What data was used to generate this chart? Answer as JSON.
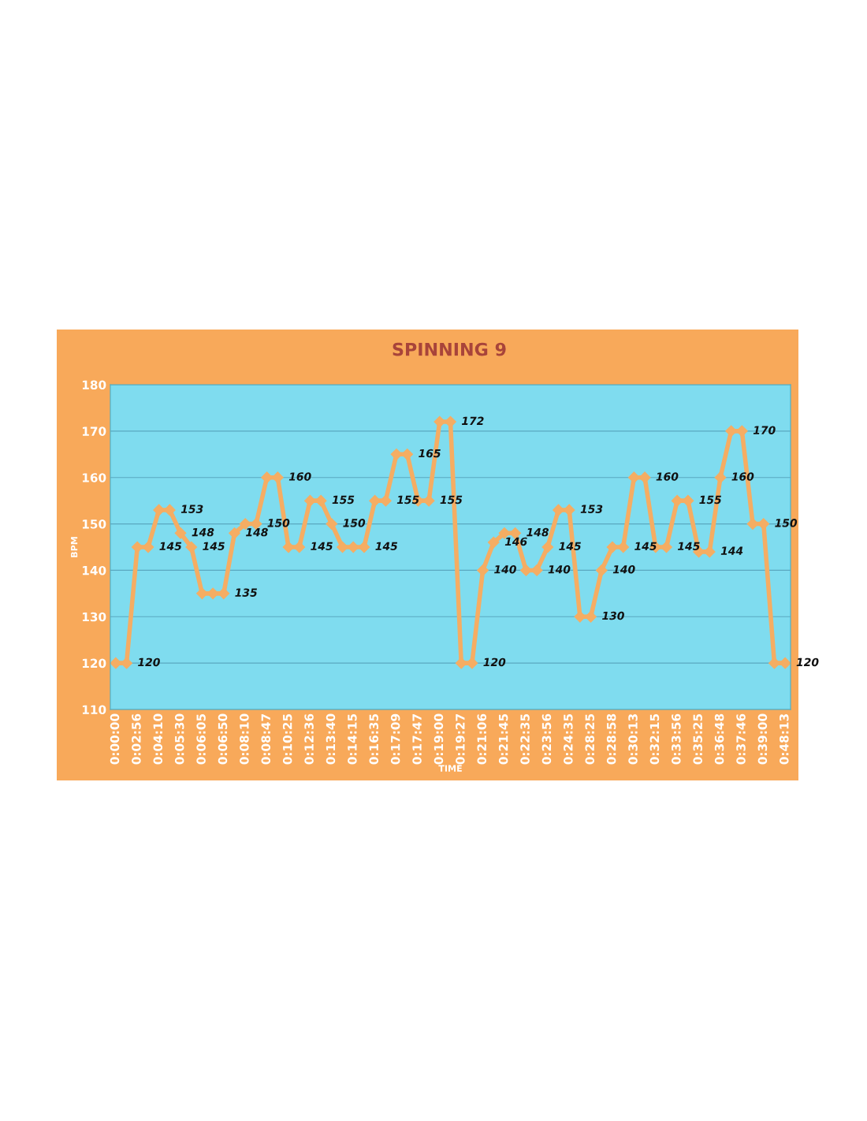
{
  "chart_data": {
    "type": "line",
    "title": "SPINNING 9",
    "xlabel": "TIME",
    "ylabel": "BPM",
    "categories": [
      "0:00:00",
      null,
      "0:02:56",
      null,
      "0:04:10",
      null,
      "0:05:30",
      null,
      "0:06:05",
      null,
      "0:06:50",
      null,
      "0:08:10",
      null,
      "0:08:47",
      null,
      "0:10:25",
      null,
      "0:12:36",
      null,
      "0:13:40",
      null,
      "0:14:15",
      null,
      "0:16:35",
      null,
      "0:17:09",
      null,
      "0:17:47",
      null,
      "0:19:00",
      null,
      "0:19:27",
      null,
      "0:21:06",
      null,
      "0:21:45",
      null,
      "0:22:35",
      null,
      "0:23:56",
      null,
      "0:24:35",
      null,
      "0:28:25",
      null,
      "0:28:58",
      null,
      "0:30:13",
      null,
      "0:32:15",
      null,
      "0:33:56",
      null,
      "0:35:25",
      null,
      "0:36:48",
      null,
      "0:37:46",
      null,
      "0:39:00",
      null,
      "0:48:13"
    ],
    "series": [
      {
        "color": "#f5ad63",
        "values": [
          120,
          120,
          145,
          145,
          153,
          153,
          148,
          145,
          135,
          135,
          135,
          148,
          150,
          150,
          160,
          160,
          145,
          145,
          155,
          155,
          150,
          145,
          145,
          145,
          155,
          155,
          165,
          165,
          155,
          155,
          172,
          172,
          120,
          120,
          140,
          146,
          148,
          148,
          140,
          140,
          145,
          153,
          153,
          130,
          130,
          140,
          145,
          145,
          160,
          160,
          145,
          145,
          155,
          155,
          144,
          144,
          160,
          170,
          170,
          150,
          150,
          120,
          120
        ],
        "value_labels": [
          null,
          "120",
          null,
          "145",
          null,
          "153",
          "148",
          "145",
          null,
          null,
          "135",
          "148",
          null,
          "150",
          null,
          "160",
          null,
          "145",
          null,
          "155",
          "150",
          null,
          null,
          "145",
          null,
          "155",
          null,
          "165",
          null,
          "155",
          null,
          "172",
          null,
          "120",
          "140",
          "146",
          null,
          "148",
          null,
          "140",
          "145",
          null,
          "153",
          null,
          "130",
          "140",
          null,
          "145",
          null,
          "160",
          null,
          "145",
          null,
          "155",
          null,
          "144",
          "160",
          null,
          "170",
          null,
          "150",
          null,
          "120"
        ]
      }
    ],
    "ylim": [
      110,
      180
    ],
    "yticks": [
      110,
      120,
      130,
      140,
      150,
      160,
      170,
      180
    ],
    "grid": "y",
    "marker": "diamond",
    "line_style": "solid"
  }
}
